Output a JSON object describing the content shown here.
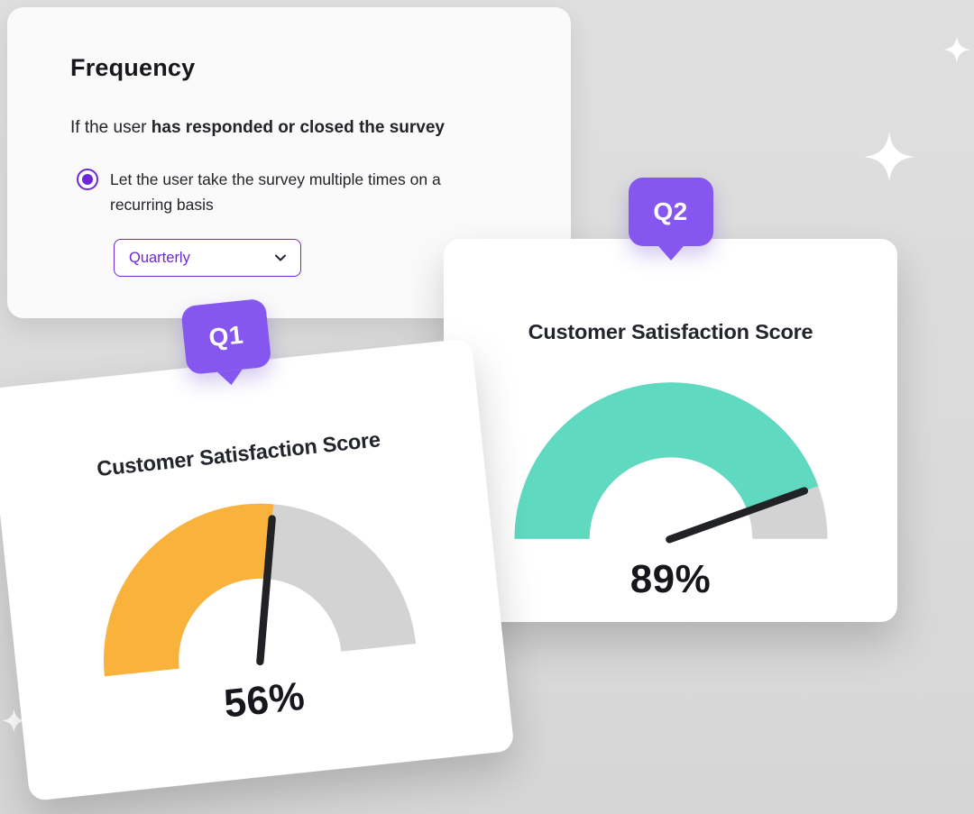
{
  "scene": {
    "background_color": "#dadada"
  },
  "frequency_card": {
    "title": "Frequency",
    "condition_prefix": "If the user ",
    "condition_bold": "has responded or closed the survey",
    "radio_option": "Let the user take the survey multiple times on a recurring basis",
    "dropdown_value": "Quarterly"
  },
  "gauges": [
    {
      "badge": "Q1",
      "title": "Customer Satisfaction Score",
      "value": 56,
      "value_label": "56%",
      "fill_color": "#f9b23b"
    },
    {
      "badge": "Q2",
      "title": "Customer Satisfaction Score",
      "value": 89,
      "value_label": "89%",
      "fill_color": "#5fd9c0"
    }
  ],
  "colors": {
    "accent_purple": "#8657ee",
    "radio_purple": "#6d28d9",
    "gauge_track": "#d3d3d3",
    "needle": "#212226",
    "card_background": "#ffffff",
    "frequency_card_background": "#fafafa"
  },
  "chart_data": [
    {
      "type": "gauge",
      "title": "Customer Satisfaction Score",
      "label": "Q1",
      "value": 56,
      "unit": "%",
      "range": [
        0,
        100
      ],
      "fill_color": "#f9b23b",
      "track_color": "#d3d3d3"
    },
    {
      "type": "gauge",
      "title": "Customer Satisfaction Score",
      "label": "Q2",
      "value": 89,
      "unit": "%",
      "range": [
        0,
        100
      ],
      "fill_color": "#5fd9c0",
      "track_color": "#d3d3d3"
    }
  ]
}
